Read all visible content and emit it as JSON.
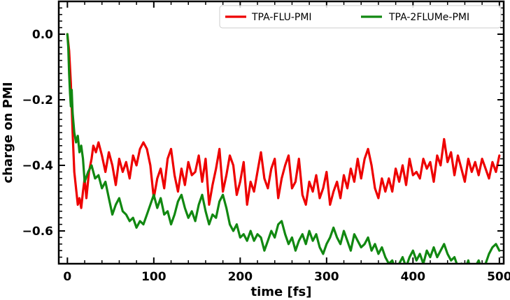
{
  "chart_data": {
    "type": "line",
    "title": "",
    "xlabel": "time [fs]",
    "ylabel": "charge on PMI",
    "xlim": [
      -10,
      505
    ],
    "ylim": [
      -0.7,
      0.1
    ],
    "xticks": [
      0,
      100,
      200,
      300,
      400,
      500
    ],
    "yticks": [
      0.0,
      -0.2,
      -0.4,
      -0.6
    ],
    "xtick_labels": [
      "0",
      "100",
      "200",
      "300",
      "400",
      "500"
    ],
    "ytick_labels": [
      "0.0",
      "−0.2",
      "−0.4",
      "−0.6"
    ],
    "grid": false,
    "legend_position": "top-right",
    "series": [
      {
        "name": "TPA-FLU-PMI",
        "color": "#ee0000",
        "x": [
          0,
          2,
          4,
          6,
          8,
          10,
          12,
          14,
          16,
          18,
          20,
          22,
          25,
          28,
          30,
          33,
          36,
          40,
          44,
          48,
          52,
          56,
          60,
          64,
          68,
          72,
          76,
          80,
          84,
          88,
          92,
          96,
          100,
          104,
          108,
          112,
          116,
          120,
          124,
          128,
          132,
          136,
          140,
          144,
          148,
          152,
          156,
          160,
          164,
          168,
          172,
          176,
          180,
          184,
          188,
          192,
          196,
          200,
          204,
          208,
          212,
          216,
          220,
          224,
          228,
          232,
          236,
          240,
          244,
          248,
          252,
          256,
          260,
          264,
          268,
          272,
          276,
          280,
          284,
          288,
          292,
          296,
          300,
          304,
          308,
          312,
          316,
          320,
          324,
          328,
          332,
          336,
          340,
          344,
          348,
          352,
          356,
          360,
          364,
          368,
          372,
          376,
          380,
          384,
          388,
          392,
          396,
          400,
          404,
          408,
          412,
          416,
          420,
          424,
          428,
          432,
          436,
          440,
          444,
          448,
          452,
          456,
          460,
          464,
          468,
          472,
          476,
          480,
          484,
          488,
          492,
          496,
          500
        ],
        "y": [
          0.0,
          -0.05,
          -0.15,
          -0.3,
          -0.42,
          -0.47,
          -0.52,
          -0.5,
          -0.53,
          -0.48,
          -0.44,
          -0.5,
          -0.42,
          -0.38,
          -0.34,
          -0.36,
          -0.33,
          -0.37,
          -0.42,
          -0.36,
          -0.4,
          -0.46,
          -0.38,
          -0.42,
          -0.39,
          -0.44,
          -0.37,
          -0.4,
          -0.35,
          -0.33,
          -0.35,
          -0.4,
          -0.5,
          -0.44,
          -0.41,
          -0.47,
          -0.38,
          -0.35,
          -0.43,
          -0.48,
          -0.41,
          -0.46,
          -0.39,
          -0.43,
          -0.42,
          -0.37,
          -0.45,
          -0.38,
          -0.52,
          -0.46,
          -0.41,
          -0.35,
          -0.48,
          -0.43,
          -0.37,
          -0.4,
          -0.49,
          -0.45,
          -0.39,
          -0.52,
          -0.45,
          -0.48,
          -0.42,
          -0.36,
          -0.44,
          -0.47,
          -0.41,
          -0.38,
          -0.5,
          -0.44,
          -0.4,
          -0.37,
          -0.47,
          -0.45,
          -0.38,
          -0.49,
          -0.52,
          -0.45,
          -0.48,
          -0.43,
          -0.5,
          -0.47,
          -0.42,
          -0.52,
          -0.48,
          -0.45,
          -0.5,
          -0.43,
          -0.47,
          -0.41,
          -0.45,
          -0.38,
          -0.44,
          -0.38,
          -0.35,
          -0.4,
          -0.47,
          -0.5,
          -0.44,
          -0.48,
          -0.44,
          -0.48,
          -0.41,
          -0.45,
          -0.4,
          -0.46,
          -0.38,
          -0.43,
          -0.42,
          -0.44,
          -0.38,
          -0.41,
          -0.39,
          -0.45,
          -0.37,
          -0.4,
          -0.32,
          -0.39,
          -0.36,
          -0.43,
          -0.37,
          -0.41,
          -0.45,
          -0.38,
          -0.42,
          -0.39,
          -0.43,
          -0.38,
          -0.41,
          -0.44,
          -0.39,
          -0.42,
          -0.37
        ]
      },
      {
        "name": "TPA-2FLUMe-PMI",
        "color": "#118811",
        "x": [
          0,
          1,
          2,
          3,
          4,
          5,
          6,
          8,
          10,
          12,
          14,
          16,
          18,
          20,
          24,
          28,
          32,
          36,
          40,
          44,
          48,
          52,
          56,
          60,
          64,
          68,
          72,
          76,
          80,
          84,
          88,
          92,
          96,
          100,
          104,
          108,
          112,
          116,
          120,
          124,
          128,
          132,
          136,
          140,
          144,
          148,
          152,
          156,
          160,
          164,
          168,
          172,
          176,
          180,
          184,
          188,
          192,
          196,
          200,
          204,
          208,
          212,
          216,
          220,
          224,
          228,
          232,
          236,
          240,
          244,
          248,
          252,
          256,
          260,
          264,
          268,
          272,
          276,
          280,
          284,
          288,
          292,
          296,
          300,
          304,
          308,
          312,
          316,
          320,
          324,
          328,
          332,
          336,
          340,
          344,
          348,
          352,
          356,
          360,
          364,
          368,
          372,
          376,
          380,
          384,
          388,
          392,
          396,
          400,
          404,
          408,
          412,
          416,
          420,
          424,
          428,
          432,
          436,
          440,
          444,
          448,
          452,
          456,
          460,
          464,
          468,
          472,
          476,
          480,
          484,
          488,
          492,
          496,
          500
        ],
        "y": [
          0.0,
          -0.04,
          -0.12,
          -0.18,
          -0.22,
          -0.17,
          -0.24,
          -0.3,
          -0.33,
          -0.31,
          -0.36,
          -0.34,
          -0.38,
          -0.45,
          -0.42,
          -0.4,
          -0.44,
          -0.43,
          -0.47,
          -0.45,
          -0.5,
          -0.55,
          -0.52,
          -0.5,
          -0.54,
          -0.55,
          -0.57,
          -0.56,
          -0.59,
          -0.57,
          -0.58,
          -0.55,
          -0.52,
          -0.49,
          -0.53,
          -0.5,
          -0.55,
          -0.54,
          -0.58,
          -0.55,
          -0.51,
          -0.49,
          -0.53,
          -0.56,
          -0.54,
          -0.57,
          -0.52,
          -0.49,
          -0.54,
          -0.58,
          -0.55,
          -0.56,
          -0.51,
          -0.49,
          -0.53,
          -0.58,
          -0.6,
          -0.58,
          -0.62,
          -0.61,
          -0.63,
          -0.6,
          -0.63,
          -0.61,
          -0.62,
          -0.66,
          -0.63,
          -0.6,
          -0.62,
          -0.58,
          -0.57,
          -0.61,
          -0.64,
          -0.62,
          -0.66,
          -0.63,
          -0.61,
          -0.64,
          -0.6,
          -0.63,
          -0.61,
          -0.65,
          -0.67,
          -0.64,
          -0.62,
          -0.59,
          -0.62,
          -0.64,
          -0.6,
          -0.63,
          -0.66,
          -0.61,
          -0.63,
          -0.65,
          -0.64,
          -0.62,
          -0.66,
          -0.64,
          -0.67,
          -0.65,
          -0.68,
          -0.7,
          -0.69,
          -0.72,
          -0.7,
          -0.68,
          -0.71,
          -0.68,
          -0.66,
          -0.69,
          -0.67,
          -0.7,
          -0.66,
          -0.68,
          -0.65,
          -0.68,
          -0.66,
          -0.64,
          -0.67,
          -0.69,
          -0.68,
          -0.71,
          -0.7,
          -0.72,
          -0.69,
          -0.74,
          -0.71,
          -0.69,
          -0.72,
          -0.7,
          -0.67,
          -0.65,
          -0.64,
          -0.66
        ]
      }
    ]
  }
}
